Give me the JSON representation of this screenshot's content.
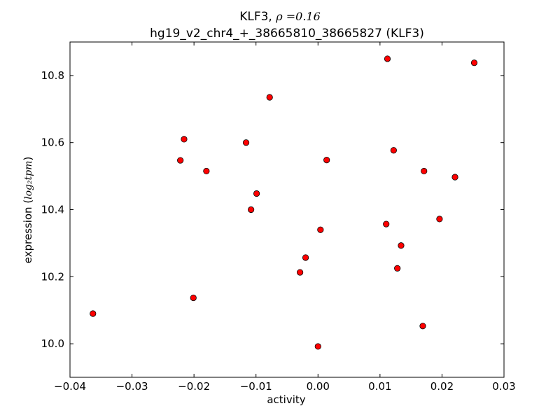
{
  "chart_data": {
    "type": "scatter",
    "title_prefix": "KLF3, ",
    "title_math": "ρ =0.16",
    "subtitle": "hg19_v2_chr4_+_38665810_38665827 (KLF3)",
    "xlabel": "activity",
    "ylabel_prefix": "expression (",
    "ylabel_math": "log₂tpm",
    "ylabel_suffix": ")",
    "xlim": [
      -0.04,
      0.03
    ],
    "ylim": [
      9.9,
      10.9
    ],
    "x_ticks": [
      -0.04,
      -0.03,
      -0.02,
      -0.01,
      0.0,
      0.01,
      0.02,
      0.03
    ],
    "x_tick_labels": [
      "−0.04",
      "−0.03",
      "−0.02",
      "−0.01",
      "0.00",
      "0.01",
      "0.02",
      "0.03"
    ],
    "y_ticks": [
      10.0,
      10.2,
      10.4,
      10.6,
      10.8
    ],
    "y_tick_labels": [
      "10.0",
      "10.2",
      "10.4",
      "10.6",
      "10.8"
    ],
    "marker_color": "#ff0000",
    "marker_edge_color": "#000000",
    "grid": false,
    "points": [
      {
        "x": -0.0363,
        "y": 10.09
      },
      {
        "x": -0.0222,
        "y": 10.547
      },
      {
        "x": -0.0216,
        "y": 10.61
      },
      {
        "x": -0.0201,
        "y": 10.137
      },
      {
        "x": -0.018,
        "y": 10.515
      },
      {
        "x": -0.0116,
        "y": 10.6
      },
      {
        "x": -0.0108,
        "y": 10.4
      },
      {
        "x": -0.0099,
        "y": 10.448
      },
      {
        "x": -0.0078,
        "y": 10.735
      },
      {
        "x": -0.0029,
        "y": 10.213
      },
      {
        "x": -0.002,
        "y": 10.257
      },
      {
        "x": 0.0,
        "y": 9.992
      },
      {
        "x": 0.0004,
        "y": 10.34
      },
      {
        "x": 0.0014,
        "y": 10.548
      },
      {
        "x": 0.011,
        "y": 10.357
      },
      {
        "x": 0.0112,
        "y": 10.85
      },
      {
        "x": 0.0122,
        "y": 10.577
      },
      {
        "x": 0.0128,
        "y": 10.225
      },
      {
        "x": 0.0134,
        "y": 10.293
      },
      {
        "x": 0.0169,
        "y": 10.053
      },
      {
        "x": 0.0171,
        "y": 10.515
      },
      {
        "x": 0.0196,
        "y": 10.372
      },
      {
        "x": 0.0221,
        "y": 10.497
      },
      {
        "x": 0.0252,
        "y": 10.838
      }
    ]
  }
}
